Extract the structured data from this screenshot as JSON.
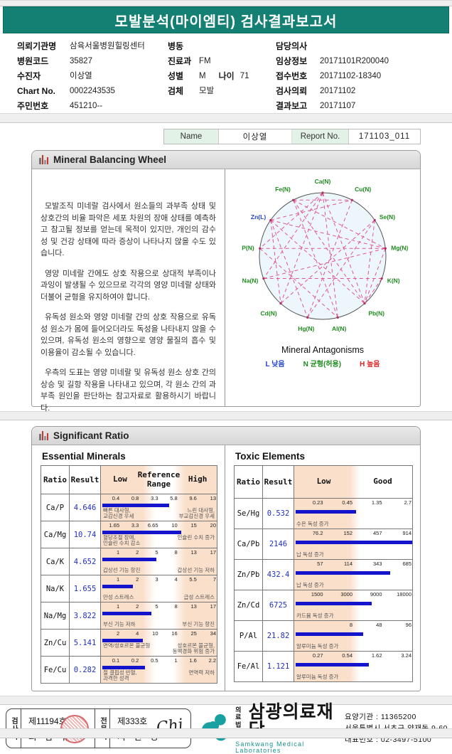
{
  "title": "모발분석(마이엠티) 검사결과보고서",
  "patient_info": {
    "col1": [
      {
        "label": "의뢰기관명",
        "value": "삼육서울병원힐링센터"
      },
      {
        "label": "병원코드",
        "value": "35827"
      },
      {
        "label": "수진자",
        "value": "이상열"
      },
      {
        "label": "Chart No.",
        "value": "0002243535"
      },
      {
        "label": "주민번호",
        "value": "451210--"
      }
    ],
    "col2": [
      {
        "label": "병동",
        "value": ""
      },
      {
        "label": "진료과",
        "value": "FM"
      },
      {
        "label": "성별",
        "value": "M",
        "label2": "나이",
        "value2": "71"
      },
      {
        "label": "검체",
        "value": "모발"
      }
    ],
    "col3": [
      {
        "label": "담당의사",
        "value": ""
      },
      {
        "label": "임상정보",
        "value": "20171101R200040"
      },
      {
        "label": "접수번호",
        "value": "20171102-18340"
      },
      {
        "label": "검사의뢰",
        "value": "20171102"
      },
      {
        "label": "결과보고",
        "value": "20171107"
      }
    ]
  },
  "name_bar": {
    "name_label": "Name",
    "name_value": "이상열",
    "report_label": "Report No.",
    "report_value": "171103_011"
  },
  "section1": {
    "title": "Mineral Balancing Wheel",
    "paragraphs": [
      "모발조직 미네랄 검사에서 원소들의 과부족 상태 및 상호간의 비율 파악은 세포 차원의 장애 상태를 예측하고 참고될 정보를 얻는데 목적이 있지만, 개인의 감수성 및 건강 상태에 따라 증상이 나타나지 않을 수도 있습니다.",
      "영양 미네랄 간에도 상호 작용으로 상대적 부족이나 과잉이 발생될 수 있으므로 각각의 영양 미네랄 상태와 더불어 균형을 유지하여야 합니다.",
      "유독성 원소와 영양 미네랄 간의 상호 작용으로 유독성 원소가 몸에 들어오더라도 독성을 나타내지 않을 수 있으며, 유독성 원소의 영향으로 영양 물질의 흡수 및 이용율이 감소될 수 있습니다.",
      "우측의 도표는 영양 미네랄 및 유독성 원소 상호 간의 상승 및 길항 작용을 나타내고 있으며, 각 원소 간의 과부족 원인을 판단하는 참고자료로 활용하시기 바랍니다."
    ],
    "wheel": {
      "caption": "Mineral Antagonisms",
      "elements": [
        {
          "name": "Ca",
          "status": "N"
        },
        {
          "name": "Cu",
          "status": "N"
        },
        {
          "name": "Se",
          "status": "N"
        },
        {
          "name": "Mg",
          "status": "N"
        },
        {
          "name": "K",
          "status": "N"
        },
        {
          "name": "Pb",
          "status": "N"
        },
        {
          "name": "Al",
          "status": "N"
        },
        {
          "name": "Hg",
          "status": "N"
        },
        {
          "name": "Cd",
          "status": "N"
        },
        {
          "name": "Na",
          "status": "N"
        },
        {
          "name": "P",
          "status": "N"
        },
        {
          "name": "Zn",
          "status": "L"
        },
        {
          "name": "Fe",
          "status": "N"
        }
      ],
      "edges": [
        [
          "Ca",
          "P"
        ],
        [
          "Ca",
          "Na"
        ],
        [
          "Ca",
          "Pb"
        ],
        [
          "Ca",
          "Cd"
        ],
        [
          "Ca",
          "Al"
        ],
        [
          "Fe",
          "Cu"
        ],
        [
          "Fe",
          "Pb"
        ],
        [
          "Fe",
          "Mg"
        ],
        [
          "Fe",
          "Al"
        ],
        [
          "Zn",
          "Cu"
        ],
        [
          "Zn",
          "Cd"
        ],
        [
          "Zn",
          "Hg"
        ],
        [
          "Zn",
          "Pb"
        ],
        [
          "Zn",
          "Mg"
        ],
        [
          "P",
          "Mg"
        ],
        [
          "P",
          "Al"
        ],
        [
          "Na",
          "K"
        ],
        [
          "Na",
          "Mg"
        ],
        [
          "Se",
          "Hg"
        ],
        [
          "Se",
          "Cd"
        ],
        [
          "Se",
          "Pb"
        ],
        [
          "Cu",
          "Hg"
        ],
        [
          "Mg",
          "Pb"
        ],
        [
          "K",
          "Pb"
        ]
      ],
      "status_colors": {
        "L": "#2244CC",
        "N": "#1E8C1E",
        "H": "#DD2222"
      },
      "line_color": "#E0569A",
      "circle_fill": "#EDF6FA",
      "legend": [
        {
          "key": "L",
          "label": "낮음",
          "color": "#2244CC"
        },
        {
          "key": "N",
          "label": "균형(허용)",
          "color": "#1E8C1E"
        },
        {
          "key": "H",
          "label": "높음",
          "color": "#DD2222"
        }
      ]
    }
  },
  "section2": {
    "title": "Significant Ratio",
    "essential": {
      "title": "Essential Minerals",
      "headers": {
        "ratio": "Ratio",
        "result": "Result",
        "low": "Low",
        "ref": "Reference Range",
        "high": "High"
      },
      "rows": [
        {
          "ratio": "Ca/P",
          "result": "4.646",
          "ticks": [
            0.4,
            0.8,
            3.3,
            5.8,
            9.6,
            13
          ],
          "tick_labels": [
            "0.4",
            "0.8",
            "3.3",
            "5.8",
            "9.6",
            "13"
          ],
          "low_text": "빠른 대사형,\n교감신경 우세",
          "high_text": "느린 대사형,\n부교감신경 우세"
        },
        {
          "ratio": "Ca/Mg",
          "result": "10.74",
          "ticks": [
            1.65,
            3.3,
            6.65,
            10,
            15,
            20
          ],
          "tick_labels": [
            "1.65",
            "3.3",
            "6.65",
            "10",
            "15",
            "20"
          ],
          "low_text": "혈당조절 장애,\n인슐린 수치 감소",
          "high_text": "인슐린 수치 증가"
        },
        {
          "ratio": "Ca/K",
          "result": "4.652",
          "ticks": [
            1,
            2,
            5,
            8,
            13,
            17
          ],
          "tick_labels": [
            "1",
            "2",
            "5",
            "8",
            "13",
            "17"
          ],
          "low_text": "갑상선 기능 항진",
          "high_text": "갑상선 기능 저하"
        },
        {
          "ratio": "Na/K",
          "result": "1.655",
          "ticks": [
            1,
            2,
            3,
            4,
            5.5,
            7
          ],
          "tick_labels": [
            "1",
            "2",
            "3",
            "4",
            "5.5",
            "7"
          ],
          "low_text": "만성 스트레스",
          "high_text": "급성 스트레스"
        },
        {
          "ratio": "Na/Mg",
          "result": "3.822",
          "ticks": [
            1,
            2,
            5,
            8,
            13,
            17
          ],
          "tick_labels": [
            "1",
            "2",
            "5",
            "8",
            "13",
            "17"
          ],
          "low_text": "부신 기능 저하",
          "high_text": "부신 기능 항진"
        },
        {
          "ratio": "Zn/Cu",
          "result": "5.141",
          "ticks": [
            2,
            4,
            10,
            16,
            25,
            34
          ],
          "tick_labels": [
            "2",
            "4",
            "10",
            "16",
            "25",
            "34"
          ],
          "low_text": "면역/성호르몬 불균형",
          "high_text": "성호르몬 불균형,\n동맥경화 위험 증가"
        },
        {
          "ratio": "Fe/Cu",
          "result": "0.282",
          "ticks": [
            0.1,
            0.2,
            0.5,
            1,
            1.6,
            2.2
          ],
          "tick_labels": [
            "0.1",
            "0.2",
            "0.5",
            "1",
            "1.6",
            "2.2"
          ],
          "low_text": "철 결핍성 빈혈,\n과격한 성격",
          "high_text": "면역력 저하"
        }
      ]
    },
    "toxic": {
      "title": "Toxic Elements",
      "headers": {
        "ratio": "Ratio",
        "result": "Result",
        "low": "Low",
        "good": "Good"
      },
      "rows": [
        {
          "ratio": "Se/Hg",
          "result": "0.532",
          "ticks": [
            0.23,
            0.45,
            1.35,
            2.7
          ],
          "tick_labels": [
            "0.23",
            "0.45",
            "1.35",
            "2.7"
          ],
          "low_text": "수은 독성 증가",
          "high_text": ""
        },
        {
          "ratio": "Ca/Pb",
          "result": "2146",
          "ticks": [
            76.2,
            152,
            457,
            914
          ],
          "tick_labels": [
            "76.2",
            "152",
            "457",
            "914"
          ],
          "low_text": "납 독성 증가",
          "high_text": ""
        },
        {
          "ratio": "Zn/Pb",
          "result": "432.4",
          "ticks": [
            57,
            114,
            343,
            685
          ],
          "tick_labels": [
            "57",
            "114",
            "343",
            "685"
          ],
          "low_text": "납 독성 증가",
          "high_text": ""
        },
        {
          "ratio": "Zn/Cd",
          "result": "6725",
          "ticks": [
            1500,
            3000,
            9000,
            18000
          ],
          "tick_labels": [
            "1500",
            "3000",
            "9000",
            "18000"
          ],
          "low_text": "카드뮴 독성 증가",
          "high_text": ""
        },
        {
          "ratio": "P/Al",
          "result": "21.82",
          "ticks": [
            4,
            8,
            48,
            96
          ],
          "tick_labels": [
            "",
            "8",
            "48",
            "96"
          ],
          "low_text": "알루미늄 독성 증가",
          "high_text": ""
        },
        {
          "ratio": "Fe/Al",
          "result": "1.121",
          "ticks": [
            0.27,
            0.54,
            1.62,
            3.24
          ],
          "tick_labels": [
            "0.27",
            "0.54",
            "1.62",
            "3.24"
          ],
          "low_text": "알루미늄 독성 증가",
          "high_text": ""
        }
      ]
    }
  },
  "footer": {
    "examiner": {
      "role": "검사자",
      "cert": "제11194호",
      "name": "최 삼 규"
    },
    "specialist": {
      "role": "전문의",
      "cert": "제333호",
      "name": "지 현 영",
      "signature": "Chi"
    },
    "org": {
      "prefix_top": "의료",
      "prefix_bottom": "법인",
      "name": "삼광의료재단",
      "name_en": "Samkwang Medical Laboratories",
      "logo_text": "SML"
    },
    "contact": {
      "line1": "요양기관 : 11365200",
      "line2": "서울특별시 서초구 양재동 9-60",
      "line3": "대표번호 : 02-3497-5100"
    }
  }
}
